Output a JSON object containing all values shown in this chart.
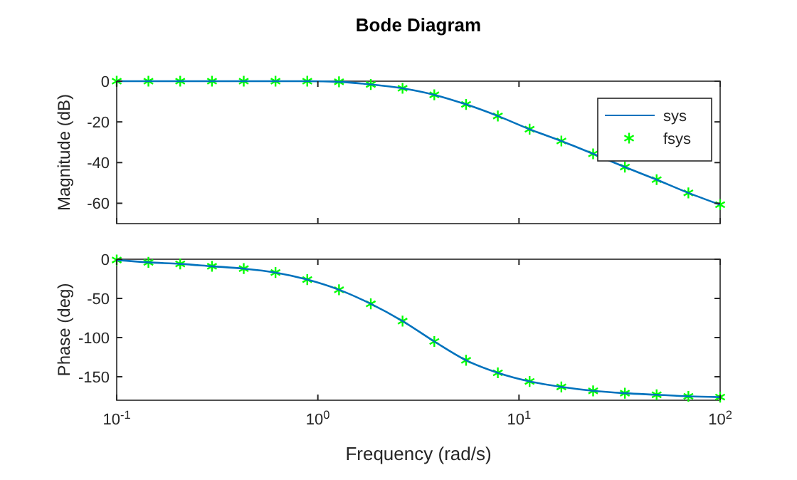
{
  "chart_data": [
    {
      "type": "line",
      "title": "Bode Diagram",
      "ylabel": "Magnitude (dB)",
      "log": "x",
      "grid": false,
      "legend": "top right",
      "tick_labels": "y",
      "x": [
        0.1,
        0.1438,
        0.2069,
        0.2976,
        0.4281,
        0.6158,
        0.8859,
        1.274,
        1.833,
        2.637,
        3.793,
        5.456,
        7.848,
        11.29,
        16.24,
        23.36,
        33.6,
        48.33,
        69.52,
        100
      ],
      "xlim": [
        0.1,
        100
      ],
      "xticks": [
        {
          "value": 0.1,
          "label": null
        },
        {
          "value": 1,
          "label": null
        },
        {
          "value": 10,
          "label": null
        },
        {
          "value": 100,
          "label": null
        }
      ],
      "ylim": [
        -70,
        0
      ],
      "yticks": [
        -60,
        -40,
        -20,
        0
      ],
      "series": [
        {
          "name": "sys",
          "color": "#0072bd",
          "marker": "none",
          "line_style": "solid",
          "values": [
            0,
            0,
            0,
            0,
            0,
            0,
            0,
            -0.3,
            -1.6,
            -3.5,
            -6.7,
            -11.4,
            -17.1,
            -23.6,
            -29.4,
            -35.7,
            -42.2,
            -48.4,
            -54.9,
            -60.7
          ]
        },
        {
          "name": "fsys",
          "type": "scatter",
          "color": "#00ff00",
          "marker": "cross",
          "values": [
            0,
            0,
            0,
            0,
            0,
            0,
            0,
            -0.3,
            -1.6,
            -3.5,
            -6.7,
            -11.4,
            -17.1,
            -23.6,
            -29.4,
            -35.7,
            -42.2,
            -48.4,
            -54.9,
            -60.7
          ]
        }
      ]
    },
    {
      "type": "line",
      "xlabel": "Frequency (rad/s)",
      "ylabel": "Phase (deg)",
      "log": "x",
      "grid": false,
      "legend": false,
      "x": [
        0.1,
        0.1438,
        0.2069,
        0.2976,
        0.4281,
        0.6158,
        0.8859,
        1.274,
        1.833,
        2.637,
        3.793,
        5.456,
        7.848,
        11.29,
        16.24,
        23.36,
        33.6,
        48.33,
        69.52,
        100
      ],
      "xlim": [
        0.1,
        100
      ],
      "xticks": [
        {
          "value": 0.1,
          "label": "10$^{-1}$"
        },
        {
          "value": 1,
          "label": "10$^{0}$"
        },
        {
          "value": 10,
          "label": "10$^{1}$"
        },
        {
          "value": 100,
          "label": "10$^{2}$"
        }
      ],
      "ylim": [
        -180,
        0
      ],
      "yticks": [
        -150,
        -100,
        -50,
        0
      ],
      "series": [
        {
          "color": "#0072bd",
          "marker": "none",
          "line_style": "solid",
          "values": [
            -1,
            -4,
            -6,
            -9,
            -12,
            -17,
            -26,
            -39,
            -57,
            -79,
            -105,
            -129,
            -145,
            -156,
            -163,
            -168,
            -171,
            -173,
            -175,
            -176
          ]
        },
        {
          "type": "scatter",
          "color": "#00ff00",
          "marker": "cross",
          "values": [
            -1,
            -4,
            -6,
            -9,
            -12,
            -17,
            -26,
            -39,
            -57,
            -79,
            -105,
            -129,
            -145,
            -156,
            -163,
            -168,
            -171,
            -173,
            -175,
            -176
          ]
        }
      ]
    }
  ]
}
